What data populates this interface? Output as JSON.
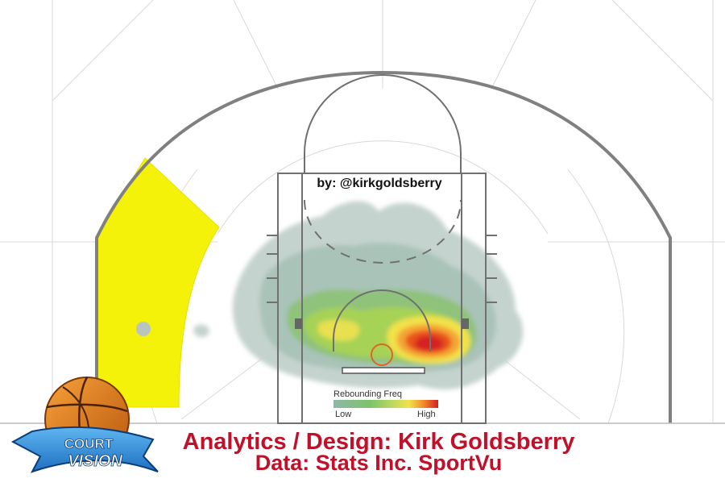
{
  "byline": "by: @kirkgoldsberry",
  "legend": {
    "title": "Rebounding Freq",
    "low": "Low",
    "high": "High",
    "gradient_colors": [
      "#8fb8a8",
      "#7dc36a",
      "#b8d860",
      "#f2e24a",
      "#f08a2a",
      "#d42020"
    ]
  },
  "credits": {
    "line1": "Analytics / Design: Kirk Goldsberry",
    "line2": "Data: Stats Inc. SportVu",
    "color": "#c0102a"
  },
  "logo": {
    "word1": "COURT",
    "word2": "VISION"
  },
  "colors": {
    "zone_fill": "#f5f20a",
    "court_line": "#777777",
    "grid_line": "#d8d8d8",
    "rim": "#e0651e"
  }
}
